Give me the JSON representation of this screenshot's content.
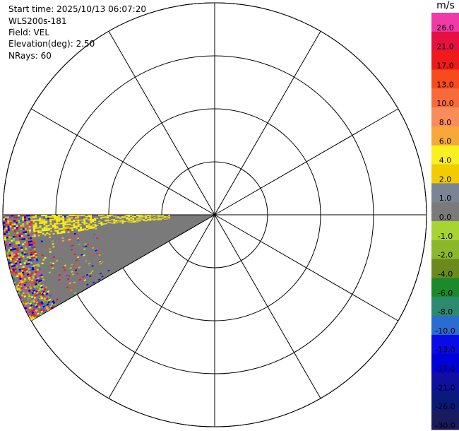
{
  "info": {
    "start_time": "Start time: 2025/10/13 06:07:20",
    "site": "WLS200s-181",
    "field": "Field: VEL",
    "elevation": "Elevation(deg): 2.50",
    "nrays": "NRays: 60"
  },
  "chart_data": {
    "type": "heatmap",
    "projection": "polar-ppi",
    "range_rings": 4,
    "azimuth_spokes_deg": [
      0,
      30,
      60,
      90,
      120,
      150,
      180,
      210,
      240,
      270,
      300,
      330
    ],
    "scan_sector_azimuth_deg": [
      240,
      270
    ],
    "colorbar": {
      "unit": "m/s",
      "levels": [
        {
          "label": "-30.0",
          "color": "#1a1a5e"
        },
        {
          "label": "-26.0",
          "color": "#0a1a7a"
        },
        {
          "label": "-21.0",
          "color": "#1010a0"
        },
        {
          "label": "-17.0",
          "color": "#0000d8"
        },
        {
          "label": "-13.0",
          "color": "#0a0ae6"
        },
        {
          "label": "-10.0",
          "color": "#2a6cd0"
        },
        {
          "label": "-8.0",
          "color": "#2e8a6e"
        },
        {
          "label": "-6.0",
          "color": "#1a8a2a"
        },
        {
          "label": "-4.0",
          "color": "#6a8a1e"
        },
        {
          "label": "-2.0",
          "color": "#8ab82a"
        },
        {
          "label": "-1.0",
          "color": "#a6d430"
        },
        {
          "label": "0.0",
          "color": "#7a7a7a"
        },
        {
          "label": "1.0",
          "color": "#7a8494"
        },
        {
          "label": "2.0",
          "color": "#f0cc00"
        },
        {
          "label": "4.0",
          "color": "#f8f020"
        },
        {
          "label": "6.0",
          "color": "#f8a838"
        },
        {
          "label": "8.0",
          "color": "#f88c5a"
        },
        {
          "label": "10.0",
          "color": "#f86a3a"
        },
        {
          "label": "13.0",
          "color": "#f84a1a"
        },
        {
          "label": "17.0",
          "color": "#f01a1a"
        },
        {
          "label": "21.0",
          "color": "#e81040"
        },
        {
          "label": "26.0",
          "color": "#f03aa8"
        }
      ]
    }
  }
}
